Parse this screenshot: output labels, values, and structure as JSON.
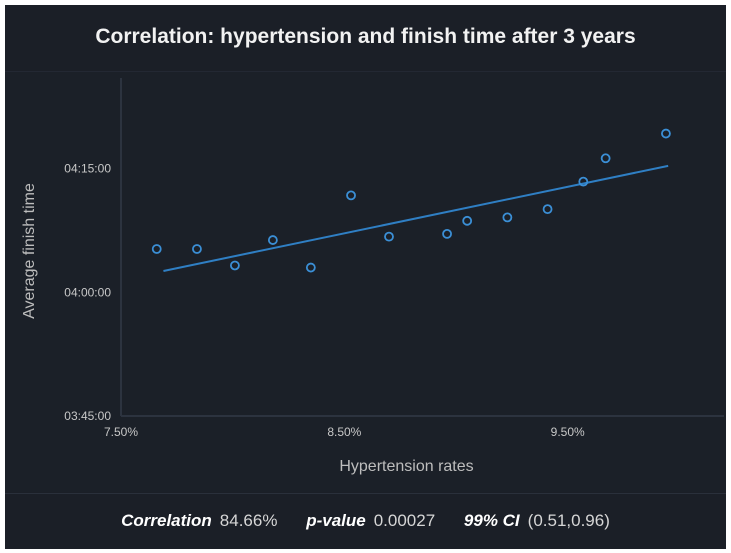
{
  "chart_data": {
    "type": "scatter",
    "title": "Correlation: hypertension and finish time after 3 years",
    "xlabel": "Hypertension rates",
    "ylabel": "Average finish time",
    "x_ticks": [
      "7.50%",
      "8.50%",
      "9.50%"
    ],
    "y_ticks": [
      "03:45:00",
      "04:00:00",
      "04:15:00"
    ],
    "xlim": [
      7.5,
      10.2
    ],
    "ylim": [
      "03:45:00",
      "04:25:30"
    ],
    "x_unit": "percent",
    "y_unit": "h:mm:ss",
    "grid": false,
    "points": [
      {
        "x": 7.66,
        "y": "04:05:15"
      },
      {
        "x": 7.84,
        "y": "04:05:15"
      },
      {
        "x": 8.01,
        "y": "04:03:15"
      },
      {
        "x": 8.18,
        "y": "04:06:20"
      },
      {
        "x": 8.35,
        "y": "04:03:00"
      },
      {
        "x": 8.53,
        "y": "04:11:45"
      },
      {
        "x": 8.7,
        "y": "04:06:45"
      },
      {
        "x": 8.96,
        "y": "04:07:05"
      },
      {
        "x": 9.05,
        "y": "04:08:40"
      },
      {
        "x": 9.23,
        "y": "04:09:05"
      },
      {
        "x": 9.41,
        "y": "04:10:05"
      },
      {
        "x": 9.57,
        "y": "04:13:25"
      },
      {
        "x": 9.67,
        "y": "04:16:15"
      },
      {
        "x": 9.94,
        "y": "04:19:15"
      }
    ],
    "trendline": [
      {
        "x": 7.69,
        "y": "04:02:35"
      },
      {
        "x": 9.95,
        "y": "04:15:20"
      }
    ],
    "colors": {
      "background": "#1b2028",
      "marker": "#3b8fd6",
      "trendline": "#2f7fc4",
      "axis_text": "#c8c8c8"
    }
  },
  "stats": {
    "correlation_label": "Correlation",
    "correlation_value": "84.66%",
    "pvalue_label": "p-value",
    "pvalue_value": "0.00027",
    "ci_label": "99% CI",
    "ci_value": "(0.51,0.96)"
  }
}
